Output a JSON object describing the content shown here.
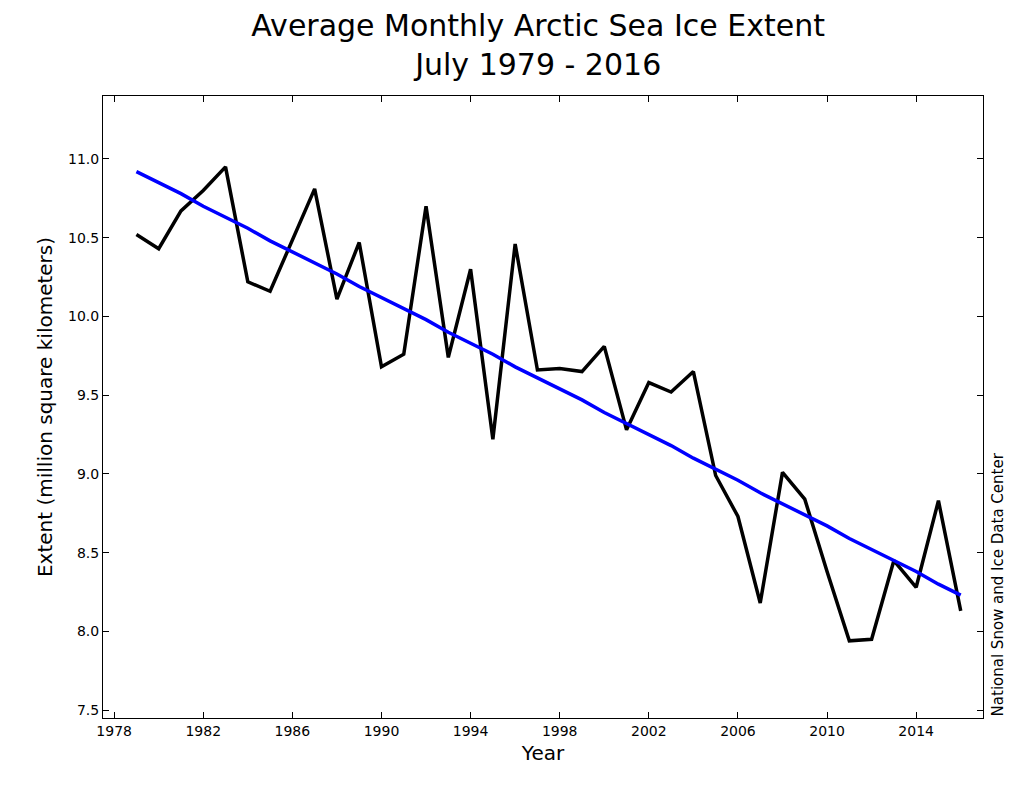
{
  "chart_data": {
    "type": "line",
    "title": "Average Monthly Arctic Sea Ice Extent\nJuly 1979 - 2016",
    "x_label": "Year",
    "y_label": "Extent (million square kilometers)",
    "annotations": [
      "National Snow and Ice Data Center"
    ],
    "x": [
      1979,
      1980,
      1981,
      1982,
      1983,
      1984,
      1985,
      1986,
      1987,
      1988,
      1989,
      1990,
      1991,
      1992,
      1993,
      1994,
      1995,
      1996,
      1997,
      1998,
      1999,
      2000,
      2001,
      2002,
      2003,
      2004,
      2005,
      2006,
      2007,
      2008,
      2009,
      2010,
      2011,
      2012,
      2013,
      2014,
      2015,
      2016
    ],
    "series": [
      {
        "color": "#000000",
        "values": [
          10.52,
          10.43,
          10.67,
          10.8,
          10.95,
          10.22,
          10.16,
          10.49,
          10.81,
          10.11,
          10.47,
          9.68,
          9.76,
          10.7,
          9.74,
          10.3,
          9.22,
          10.46,
          9.66,
          9.67,
          9.65,
          9.81,
          9.28,
          9.58,
          9.52,
          9.65,
          8.99,
          8.73,
          8.18,
          9.01,
          8.84,
          8.38,
          7.94,
          7.95,
          8.45,
          8.28,
          8.83,
          8.13
        ]
      },
      {
        "color": "#0000ff",
        "values": [
          10.92,
          10.85,
          10.78,
          10.7,
          10.63,
          10.56,
          10.48,
          10.41,
          10.34,
          10.27,
          10.19,
          10.12,
          10.05,
          9.98,
          9.9,
          9.83,
          9.76,
          9.68,
          9.61,
          9.54,
          9.47,
          9.39,
          9.32,
          9.25,
          9.18,
          9.1,
          9.03,
          8.96,
          8.88,
          8.81,
          8.74,
          8.67,
          8.59,
          8.52,
          8.45,
          8.38,
          8.3,
          8.23
        ]
      }
    ],
    "xlim": [
      1977.5,
      2017
    ],
    "xticks": [
      1978,
      1982,
      1986,
      1990,
      1994,
      1998,
      2002,
      2006,
      2010,
      2014
    ],
    "ylim": [
      7.45,
      11.4
    ],
    "yticks": [
      7.5,
      {
        "value": 8,
        "label": "8.0"
      },
      8.5,
      {
        "value": 9,
        "label": "9.0"
      },
      9.5,
      {
        "value": 10,
        "label": "10.0"
      },
      10.5,
      {
        "value": 11,
        "label": "11.0"
      }
    ],
    "grid": false
  }
}
